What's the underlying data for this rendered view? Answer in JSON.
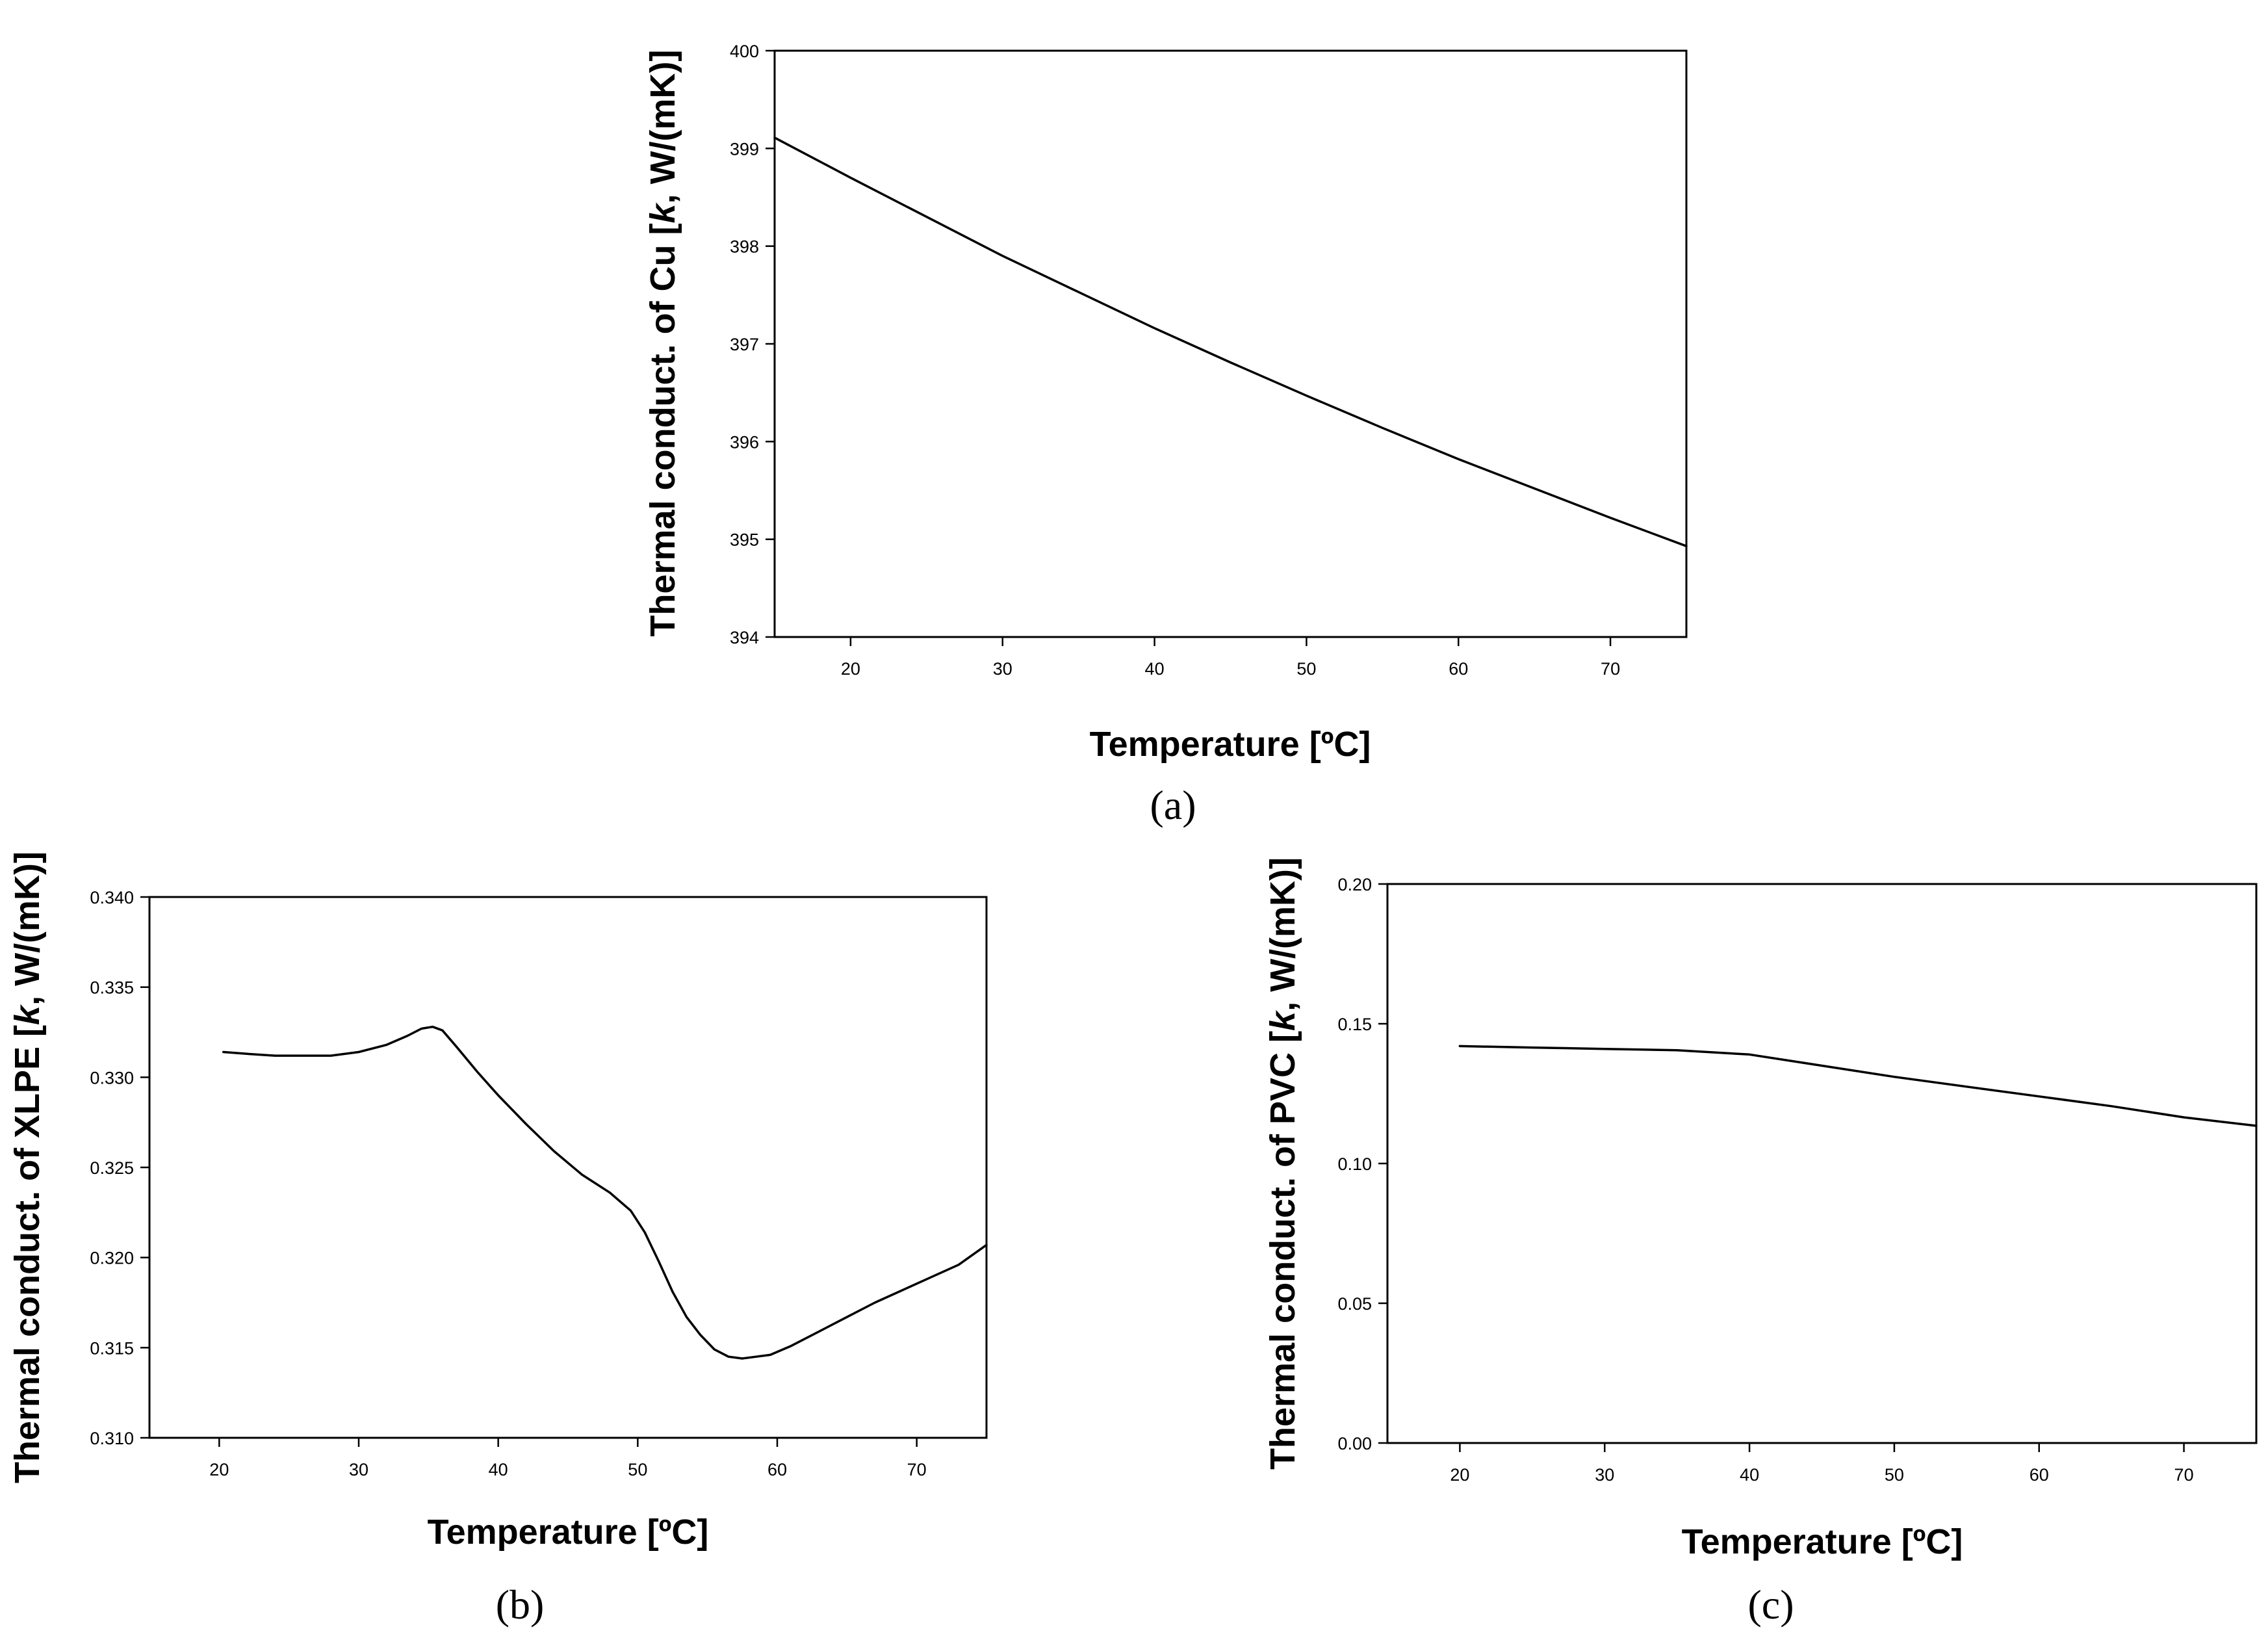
{
  "chart_data": [
    {
      "id": "a",
      "type": "line",
      "panel_label": "(a)",
      "xlabel": "Temperature [ºC]",
      "ylabel_prefix": "Thermal conduct. of Cu [",
      "ylabel_italic": "k",
      "ylabel_suffix": ", W/(mK)]",
      "xlim": [
        15,
        75
      ],
      "ylim": [
        394,
        400
      ],
      "xticks": [
        20,
        30,
        40,
        50,
        60,
        70
      ],
      "yticks": [
        394,
        395,
        396,
        397,
        398,
        399,
        400
      ],
      "ytick_labels": [
        "394",
        "395",
        "396",
        "397",
        "398",
        "399",
        "400"
      ],
      "grid": false,
      "series": [
        {
          "name": "Cu",
          "x": [
            15,
            20,
            25,
            30,
            35,
            40,
            45,
            50,
            55,
            60,
            65,
            70,
            75
          ],
          "y": [
            399.11,
            398.7,
            398.3,
            397.9,
            397.53,
            397.16,
            396.81,
            396.47,
            396.14,
            395.82,
            395.52,
            395.22,
            394.93
          ]
        }
      ]
    },
    {
      "id": "b",
      "type": "line",
      "panel_label": "(b)",
      "xlabel": "Temperature [ºC]",
      "ylabel_prefix": "Thermal conduct. of XLPE [",
      "ylabel_italic": "k",
      "ylabel_suffix": ", W/(mK)]",
      "xlim": [
        15,
        75
      ],
      "ylim": [
        0.31,
        0.34
      ],
      "xticks": [
        20,
        30,
        40,
        50,
        60,
        70
      ],
      "yticks": [
        0.31,
        0.315,
        0.32,
        0.325,
        0.33,
        0.335,
        0.34
      ],
      "ytick_labels": [
        "0.310",
        "0.315",
        "0.320",
        "0.325",
        "0.330",
        "0.335",
        "0.340"
      ],
      "grid": false,
      "series": [
        {
          "name": "XLPE",
          "x": [
            20.3,
            22,
            24,
            26,
            28,
            30,
            32,
            33.5,
            34.5,
            35.3,
            36,
            37,
            38.5,
            40,
            42,
            44,
            46,
            48,
            49.5,
            50.5,
            51.5,
            52.5,
            53.5,
            54.5,
            55.5,
            56.5,
            57.5,
            58.5,
            59.5,
            61,
            63,
            65,
            67,
            69,
            71,
            73,
            75
          ],
          "y": [
            0.3314,
            0.3313,
            0.3312,
            0.3312,
            0.3312,
            0.3314,
            0.3318,
            0.3323,
            0.3327,
            0.3328,
            0.3326,
            0.3317,
            0.3303,
            0.329,
            0.3274,
            0.3259,
            0.3246,
            0.3236,
            0.3226,
            0.3214,
            0.3198,
            0.3181,
            0.3167,
            0.3157,
            0.3149,
            0.3145,
            0.3144,
            0.3145,
            0.3146,
            0.3151,
            0.3159,
            0.3167,
            0.3175,
            0.3182,
            0.3189,
            0.3196,
            0.3207
          ]
        }
      ]
    },
    {
      "id": "c",
      "type": "line",
      "panel_label": "(c)",
      "xlabel": "Temperature [ºC]",
      "ylabel_prefix": "Thermal conduct. of PVC [",
      "ylabel_italic": "k",
      "ylabel_suffix": ", W/(mK)]",
      "xlim": [
        15,
        75
      ],
      "ylim": [
        0,
        0.2
      ],
      "xticks": [
        20,
        30,
        40,
        50,
        60,
        70
      ],
      "yticks": [
        0,
        0.05,
        0.1,
        0.15,
        0.2
      ],
      "ytick_labels": [
        "0.00",
        "0.05",
        "0.10",
        "0.15",
        "0.20"
      ],
      "grid": false,
      "series": [
        {
          "name": "PVC",
          "x": [
            20,
            25,
            30,
            35,
            40,
            45,
            50,
            55,
            60,
            65,
            70,
            75
          ],
          "y": [
            0.142,
            0.1415,
            0.141,
            0.1405,
            0.139,
            0.135,
            0.131,
            0.1275,
            0.124,
            0.1205,
            0.1165,
            0.1135
          ]
        }
      ]
    }
  ]
}
